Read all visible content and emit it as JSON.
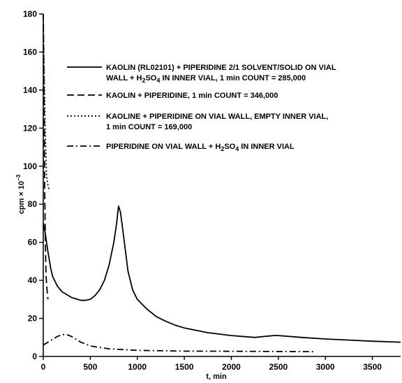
{
  "chart_data": {
    "type": "line",
    "title": "",
    "xlabel": "t, min",
    "ylabel_parts": {
      "main": "cpm × 10",
      "exp": "−3"
    },
    "xlim": [
      0,
      3800
    ],
    "ylim": [
      0,
      180
    ],
    "x_ticks": [
      "0",
      "500",
      "1000",
      "1500",
      "2000",
      "2500",
      "3000",
      "3500"
    ],
    "y_ticks": [
      "0",
      "20",
      "40",
      "60",
      "80",
      "100",
      "120",
      "140",
      "160",
      "180"
    ],
    "grid": false,
    "legend_placement": "upper-right",
    "series": [
      {
        "style": "solid",
        "legend": [
          [
            {
              "t": "KAOLIN (RL02101) + PIPERIDINE 2/1 SOLVENT/SOLID ON VIAL"
            }
          ],
          [
            {
              "t": "WALL + H"
            },
            {
              "t": "2",
              "sub": true
            },
            {
              "t": "SO"
            },
            {
              "t": "4",
              "sub": true
            },
            {
              "t": " IN INNER VIAL, 1 min COUNT = 285,000"
            }
          ]
        ],
        "x": [
          0,
          20,
          50,
          80,
          100,
          150,
          200,
          300,
          400,
          450,
          500,
          550,
          600,
          650,
          700,
          750,
          780,
          800,
          820,
          850,
          900,
          950,
          1000,
          1100,
          1200,
          1300,
          1400,
          1500,
          1750,
          2000,
          2250,
          2350,
          2450,
          2500,
          2750,
          3000,
          3250,
          3500,
          3800
        ],
        "y": [
          70,
          65,
          55,
          46,
          42,
          37,
          34,
          31,
          29.5,
          29.5,
          30,
          32,
          35,
          40,
          48,
          60,
          70,
          79,
          76,
          65,
          45,
          35,
          30,
          25,
          21,
          18.5,
          16.5,
          15,
          12.5,
          11,
          10,
          10.5,
          11,
          11,
          10,
          9.2,
          8.6,
          8,
          7.5
        ]
      },
      {
        "style": "dashed",
        "legend": [
          [
            {
              "t": "KAOLIN + PIPERIDINE, 1 min COUNT = 346,000"
            }
          ]
        ],
        "x": [
          0,
          8,
          15,
          22,
          30,
          40,
          50
        ],
        "y": [
          180,
          140,
          90,
          60,
          42,
          35,
          30
        ],
        "note_x_partial": true
      },
      {
        "style": "dotted",
        "legend": [
          [
            {
              "t": "KAOLINE + PIPERIDINE ON VIAL WALL, EMPTY INNER VIAL,"
            }
          ],
          [
            {
              "t": "1 min COUNT = 169,000"
            }
          ]
        ],
        "x": [
          0,
          10,
          20,
          35,
          50,
          60
        ],
        "y": [
          175,
          150,
          120,
          95,
          90,
          88
        ]
      },
      {
        "style": "dashdot",
        "legend": [
          [
            {
              "t": "PIPERIDINE ON VIAL WALL + H"
            },
            {
              "t": "2",
              "sub": true
            },
            {
              "t": "SO"
            },
            {
              "t": "4",
              "sub": true
            },
            {
              "t": " IN INNER VIAL"
            }
          ]
        ],
        "x": [
          0,
          50,
          100,
          150,
          200,
          250,
          300,
          400,
          500,
          700,
          1000,
          1500,
          2000,
          2500,
          2900
        ],
        "y": [
          6,
          7.5,
          9,
          10.5,
          11.5,
          11.5,
          10.5,
          7.5,
          5.5,
          4,
          3.2,
          2.8,
          2.7,
          2.6,
          2.5
        ]
      }
    ]
  }
}
